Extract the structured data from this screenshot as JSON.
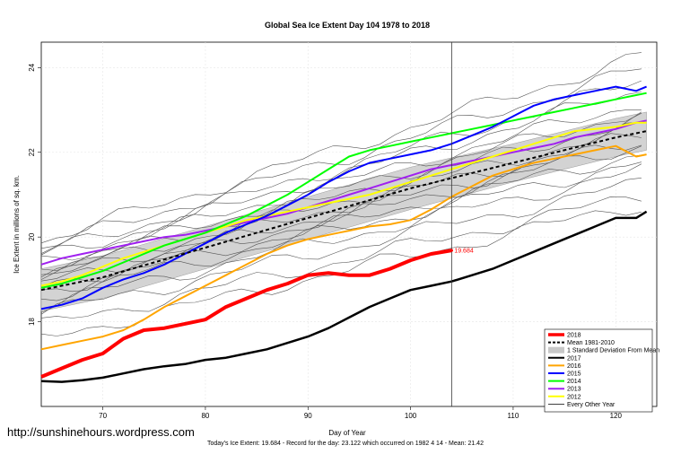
{
  "chart_data": {
    "type": "line",
    "title": "Global Sea Ice Extent Day 104 1978 to 2018",
    "xlabel": "Day of Year",
    "ylabel": "Ice Extent in millions of sq. km.",
    "xlim": [
      64,
      124
    ],
    "ylim": [
      16.0,
      24.6
    ],
    "xticks": [
      70,
      80,
      90,
      100,
      110,
      120
    ],
    "yticks": [
      18,
      20,
      22,
      24
    ],
    "marker_day": 104,
    "grid": true,
    "legend_position": "bottom-right",
    "annotation": {
      "label": "19.684",
      "x": 104,
      "y": 19.684,
      "color": "#ff0000"
    },
    "footer": "Today's Ice Extent: 19.684  - Record for the day: 23.122 which occurred on 1982 4 14  - Mean: 21.42",
    "watermark": "http://sunshinehours.wordpress.com",
    "legend": [
      {
        "label": "2018",
        "color": "#ff0000",
        "style": "thick"
      },
      {
        "label": "Mean 1981-2010",
        "color": "#000000",
        "style": "dashed"
      },
      {
        "label": "1 Standard Deviation From Mean",
        "color": "#c8c8c8",
        "style": "box"
      },
      {
        "label": "2017",
        "color": "#000000",
        "style": "solid"
      },
      {
        "label": "2016",
        "color": "#ffa500",
        "style": "solid"
      },
      {
        "label": "2015",
        "color": "#0000ff",
        "style": "solid"
      },
      {
        "label": "2014",
        "color": "#00ff00",
        "style": "solid"
      },
      {
        "label": "2013",
        "color": "#a020f0",
        "style": "solid"
      },
      {
        "label": "2012",
        "color": "#ffff00",
        "style": "solid"
      },
      {
        "label": "Every Other Year",
        "color": "#000000",
        "style": "thin"
      }
    ],
    "mean_band": {
      "x": [
        64,
        70,
        80,
        90,
        100,
        110,
        120,
        123
      ],
      "mean": [
        18.75,
        19.05,
        19.75,
        20.45,
        21.15,
        21.75,
        22.35,
        22.5
      ],
      "lower": [
        18.25,
        18.55,
        19.25,
        19.95,
        20.65,
        21.3,
        21.9,
        22.05
      ],
      "upper": [
        19.25,
        19.55,
        20.25,
        20.95,
        21.65,
        22.2,
        22.8,
        22.95
      ]
    },
    "series": [
      {
        "name": "2018",
        "color": "#ff0000",
        "width": 4,
        "x": [
          64,
          66,
          68,
          70,
          72,
          74,
          76,
          78,
          80,
          82,
          84,
          86,
          88,
          90,
          92,
          94,
          96,
          98,
          100,
          102,
          104
        ],
        "y": [
          16.7,
          16.9,
          17.1,
          17.25,
          17.6,
          17.8,
          17.85,
          17.95,
          18.05,
          18.35,
          18.55,
          18.75,
          18.9,
          19.1,
          19.15,
          19.1,
          19.1,
          19.25,
          19.45,
          19.6,
          19.684
        ]
      },
      {
        "name": "2017",
        "color": "#000000",
        "width": 2.5,
        "x": [
          64,
          66,
          68,
          70,
          72,
          74,
          76,
          78,
          80,
          82,
          84,
          86,
          88,
          90,
          92,
          94,
          96,
          98,
          100,
          102,
          104,
          106,
          108,
          110,
          112,
          114,
          116,
          118,
          120,
          122,
          123
        ],
        "y": [
          16.6,
          16.58,
          16.62,
          16.68,
          16.78,
          16.88,
          16.95,
          17.0,
          17.1,
          17.15,
          17.25,
          17.35,
          17.5,
          17.65,
          17.85,
          18.1,
          18.35,
          18.55,
          18.75,
          18.85,
          18.95,
          19.1,
          19.25,
          19.45,
          19.65,
          19.85,
          20.05,
          20.25,
          20.45,
          20.45,
          20.6
        ]
      },
      {
        "name": "2016",
        "color": "#ffa500",
        "width": 2,
        "x": [
          64,
          66,
          68,
          70,
          72,
          74,
          76,
          78,
          80,
          82,
          84,
          86,
          88,
          90,
          92,
          94,
          96,
          98,
          100,
          102,
          104,
          106,
          108,
          110,
          112,
          114,
          116,
          118,
          120,
          122,
          123
        ],
        "y": [
          17.35,
          17.45,
          17.55,
          17.65,
          17.8,
          18.05,
          18.35,
          18.6,
          18.85,
          19.1,
          19.35,
          19.6,
          19.8,
          19.95,
          20.05,
          20.15,
          20.25,
          20.3,
          20.4,
          20.65,
          20.95,
          21.2,
          21.45,
          21.6,
          21.75,
          21.85,
          21.95,
          22.05,
          22.15,
          21.9,
          21.95
        ]
      },
      {
        "name": "2015",
        "color": "#0000ff",
        "width": 2,
        "x": [
          64,
          66,
          68,
          70,
          72,
          74,
          76,
          78,
          80,
          82,
          84,
          86,
          88,
          90,
          92,
          94,
          96,
          98,
          100,
          102,
          104,
          106,
          108,
          110,
          112,
          114,
          116,
          118,
          120,
          122,
          123
        ],
        "y": [
          18.3,
          18.4,
          18.55,
          18.8,
          19.0,
          19.15,
          19.35,
          19.6,
          19.85,
          20.1,
          20.3,
          20.5,
          20.75,
          21.0,
          21.3,
          21.55,
          21.75,
          21.85,
          21.95,
          22.05,
          22.2,
          22.4,
          22.6,
          22.85,
          23.1,
          23.25,
          23.35,
          23.45,
          23.55,
          23.45,
          23.55
        ]
      },
      {
        "name": "2014",
        "color": "#00ff00",
        "width": 2,
        "x": [
          64,
          66,
          68,
          70,
          72,
          74,
          76,
          78,
          80,
          82,
          84,
          86,
          88,
          90,
          92,
          94,
          96,
          98,
          100,
          102,
          104,
          106,
          108,
          110,
          112,
          114,
          116,
          118,
          120,
          122,
          123
        ],
        "y": [
          18.8,
          18.9,
          19.05,
          19.2,
          19.4,
          19.6,
          19.8,
          19.95,
          20.1,
          20.3,
          20.5,
          20.75,
          21.0,
          21.3,
          21.6,
          21.9,
          22.05,
          22.15,
          22.25,
          22.35,
          22.45,
          22.55,
          22.65,
          22.75,
          22.85,
          22.95,
          23.05,
          23.15,
          23.25,
          23.35,
          23.4
        ]
      },
      {
        "name": "2013",
        "color": "#a020f0",
        "width": 2,
        "x": [
          64,
          66,
          68,
          70,
          72,
          74,
          76,
          78,
          80,
          82,
          84,
          86,
          88,
          90,
          92,
          94,
          96,
          98,
          100,
          102,
          104,
          106,
          108,
          110,
          112,
          114,
          116,
          118,
          120,
          122,
          123
        ],
        "y": [
          19.35,
          19.5,
          19.6,
          19.7,
          19.8,
          19.9,
          20.0,
          20.05,
          20.15,
          20.25,
          20.35,
          20.45,
          20.55,
          20.7,
          20.85,
          21.0,
          21.15,
          21.3,
          21.45,
          21.6,
          21.7,
          21.8,
          21.9,
          22.0,
          22.1,
          22.2,
          22.35,
          22.45,
          22.55,
          22.7,
          22.75
        ]
      },
      {
        "name": "2012",
        "color": "#ffff00",
        "width": 2,
        "x": [
          64,
          66,
          68,
          70,
          72,
          74,
          76,
          78,
          80,
          82,
          84,
          86,
          88,
          90,
          92,
          94,
          96,
          98,
          100,
          102,
          104,
          106,
          108,
          110,
          112,
          114,
          116,
          118,
          120,
          122,
          123
        ],
        "y": [
          18.85,
          18.95,
          19.1,
          19.3,
          19.5,
          19.65,
          19.8,
          19.95,
          20.1,
          20.25,
          20.4,
          20.5,
          20.6,
          20.7,
          20.8,
          20.9,
          21.0,
          21.15,
          21.3,
          21.45,
          21.6,
          21.75,
          21.9,
          22.05,
          22.2,
          22.35,
          22.5,
          22.55,
          22.6,
          22.7,
          22.7
        ]
      },
      {
        "name": "Mean 1981-2010",
        "color": "#000000",
        "width": 2,
        "dashed": true,
        "x": [
          64,
          70,
          80,
          90,
          100,
          110,
          120,
          123
        ],
        "y": [
          18.75,
          19.05,
          19.75,
          20.45,
          21.15,
          21.75,
          22.35,
          22.5
        ]
      }
    ],
    "other_years": [
      {
        "start": 19.9,
        "end": 24.3
      },
      {
        "start": 19.75,
        "end": 24.0
      },
      {
        "start": 19.6,
        "end": 23.7
      },
      {
        "start": 19.5,
        "end": 23.5
      },
      {
        "start": 19.4,
        "end": 23.2
      },
      {
        "start": 19.3,
        "end": 23.0
      },
      {
        "start": 19.2,
        "end": 22.8
      },
      {
        "start": 19.1,
        "end": 22.6
      },
      {
        "start": 19.0,
        "end": 22.45
      },
      {
        "start": 18.9,
        "end": 22.3
      },
      {
        "start": 18.8,
        "end": 22.2
      },
      {
        "start": 18.7,
        "end": 22.0
      },
      {
        "start": 18.6,
        "end": 21.8
      },
      {
        "start": 18.4,
        "end": 21.6
      },
      {
        "start": 18.2,
        "end": 21.3
      },
      {
        "start": 17.9,
        "end": 21.0
      },
      {
        "start": 17.6,
        "end": 20.8
      }
    ]
  }
}
